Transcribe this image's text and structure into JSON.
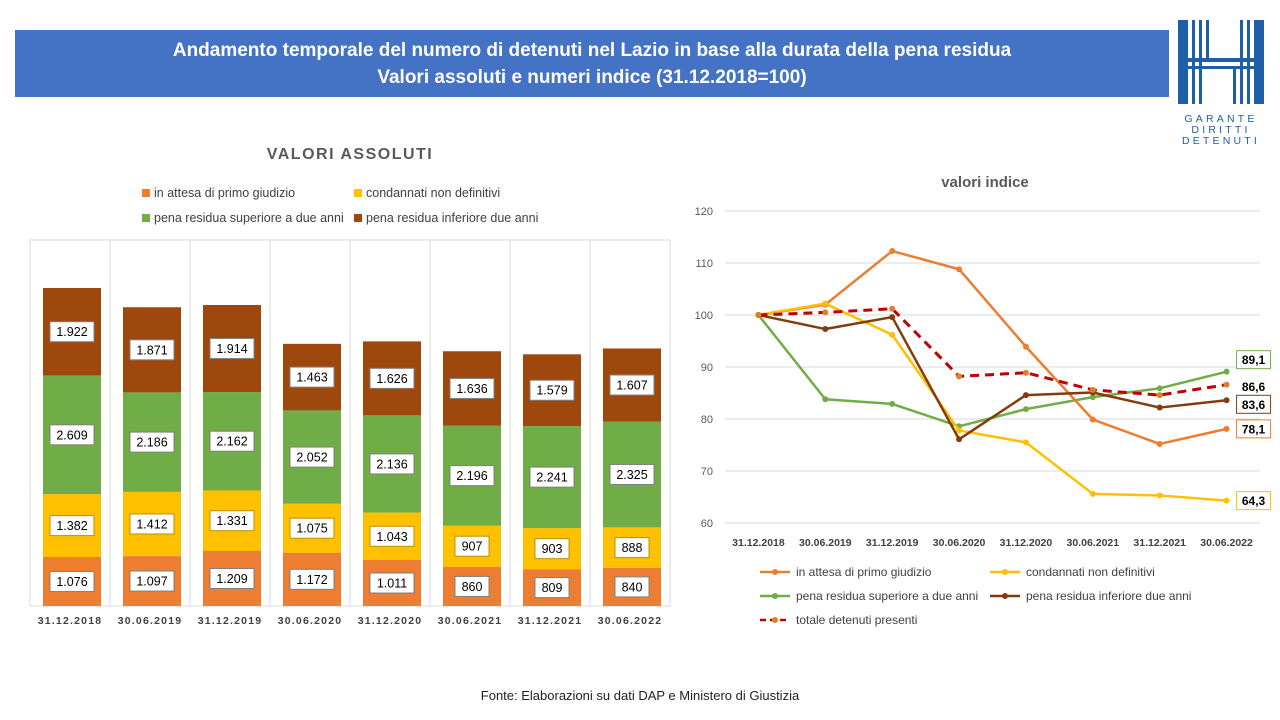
{
  "header": {
    "title_line1": "Andamento temporale del numero di detenuti nel Lazio in base alla durata della pena residua",
    "title_line2": "Valori assoluti e numeri indice (31.12.2018=100)"
  },
  "logo": {
    "lines": [
      "GARANTE",
      "DIRITTI",
      "DETENUTI"
    ]
  },
  "footer": "Fonte: Elaborazioni su dati DAP e Ministero di Giustizia",
  "chart_data": [
    {
      "type": "bar",
      "stacked": true,
      "title": "VALORI ASSOLUTI",
      "legend_position": "top",
      "categories": [
        "31.12.2018",
        "30.06.2019",
        "31.12.2019",
        "30.06.2020",
        "31.12.2020",
        "30.06.2021",
        "31.12.2021",
        "30.06.2022"
      ],
      "series": [
        {
          "name": "in attesa di primo giudizio",
          "color": "#ED7D31",
          "values": [
            1076,
            1097,
            1209,
            1172,
            1011,
            860,
            809,
            840
          ],
          "labels": [
            "1.076",
            "1.097",
            "1.209",
            "1.172",
            "1.011",
            "860",
            "809",
            "840"
          ]
        },
        {
          "name": "condannati non definitivi",
          "color": "#FFC000",
          "values": [
            1382,
            1412,
            1331,
            1075,
            1043,
            907,
            903,
            888
          ],
          "labels": [
            "1.382",
            "1.412",
            "1.331",
            "1.075",
            "1.043",
            "907",
            "903",
            "888"
          ]
        },
        {
          "name": "pena residua superiore a due anni",
          "color": "#70AD47",
          "values": [
            2609,
            2186,
            2162,
            2052,
            2136,
            2196,
            2241,
            2325
          ],
          "labels": [
            "2.609",
            "2.186",
            "2.162",
            "2.052",
            "2.136",
            "2.196",
            "2.241",
            "2.325"
          ]
        },
        {
          "name": "pena residua inferiore due anni",
          "color": "#9E480E",
          "values": [
            1922,
            1871,
            1914,
            1463,
            1626,
            1636,
            1579,
            1607
          ],
          "labels": [
            "1.922",
            "1.871",
            "1.914",
            "1.463",
            "1.626",
            "1.636",
            "1.579",
            "1.607"
          ]
        }
      ]
    },
    {
      "type": "line",
      "title": "valori indice",
      "legend_position": "bottom",
      "categories": [
        "31.12.2018",
        "30.06.2019",
        "31.12.2019",
        "30.06.2020",
        "31.12.2020",
        "30.06.2021",
        "31.12.2021",
        "30.06.2022"
      ],
      "ylim": [
        60,
        120
      ],
      "yticks": [
        60,
        70,
        80,
        90,
        100,
        110,
        120
      ],
      "grid": true,
      "series": [
        {
          "name": "in attesa di primo giudizio",
          "color": "#ED7D31",
          "values": [
            100,
            102,
            112.3,
            108.8,
            93.9,
            79.9,
            75.2,
            78.1
          ],
          "end_label": "78,1"
        },
        {
          "name": "condannati non definitivi",
          "color": "#FFC000",
          "values": [
            100,
            102.2,
            96.2,
            77.8,
            75.5,
            65.6,
            65.3,
            64.3
          ],
          "end_label": "64,3"
        },
        {
          "name": "pena residua superiore a due anni",
          "color": "#70AD47",
          "values": [
            100,
            83.8,
            82.9,
            78.6,
            81.9,
            84.2,
            85.9,
            89.1
          ],
          "end_label": "89,1"
        },
        {
          "name": "pena residua inferiore due anni",
          "color": "#843C0C",
          "values": [
            100,
            97.3,
            99.6,
            76.1,
            84.6,
            85.1,
            82.2,
            83.6
          ],
          "end_label": "83,6"
        },
        {
          "name": "totale detenuti presenti",
          "color": "#C00000",
          "dashed": true,
          "values": [
            100,
            100.5,
            101.2,
            88.2,
            88.9,
            85.6,
            84.6,
            86.6
          ],
          "end_label": "86,6"
        }
      ]
    }
  ]
}
